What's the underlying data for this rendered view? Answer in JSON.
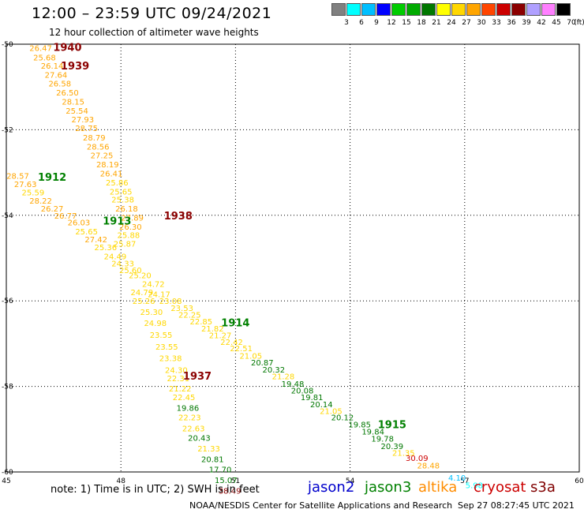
{
  "title": "12:00 – 23:59 UTC 09/24/2021",
  "subtitle": "12 hour collection of altimeter wave heights",
  "legend": {
    "labels": [
      "3",
      "6",
      "9",
      "12",
      "15",
      "18",
      "21",
      "24",
      "27",
      "30",
      "33",
      "36",
      "39",
      "42",
      "45",
      "70",
      "(ft)"
    ],
    "colors": [
      "#808080",
      "#00ffff",
      "#00bfff",
      "#0000ff",
      "#00cc00",
      "#00aa00",
      "#007700",
      "#ffff00",
      "#ffd700",
      "#ffa500",
      "#ff4500",
      "#cc0000",
      "#8b0000",
      "#b0a0ff",
      "#ff80ff",
      "#000000"
    ]
  },
  "axes": {
    "lon_range": [
      45,
      60
    ],
    "lat_range": [
      -60,
      -50
    ],
    "x_ticks": [
      "45",
      "48",
      "51",
      "54",
      "57",
      "60"
    ],
    "y_ticks": [
      "-50",
      "-52",
      "-54",
      "-56",
      "-58",
      "-60"
    ]
  },
  "colors": {
    "jason2": "#0000cc",
    "jason3": "#008000",
    "altika": "#ff8c00",
    "cryosat": "#cc0000",
    "s3a": "#800000",
    "grid": "#000000"
  },
  "map_data": {
    "heights": [
      {
        "v": "26.47",
        "x": 45.9,
        "y": -50.08,
        "c": "#ffa500"
      },
      {
        "v": "25.68",
        "x": 46.0,
        "y": -50.3,
        "c": "#ffa500"
      },
      {
        "v": "26.14",
        "x": 46.2,
        "y": -50.5,
        "c": "#ffa500"
      },
      {
        "v": "27.64",
        "x": 46.3,
        "y": -50.71,
        "c": "#ffa500"
      },
      {
        "v": "26.58",
        "x": 46.4,
        "y": -50.91,
        "c": "#ffa500"
      },
      {
        "v": "26.50",
        "x": 46.6,
        "y": -51.13,
        "c": "#ffa500"
      },
      {
        "v": "28.15",
        "x": 46.75,
        "y": -51.34,
        "c": "#ffa500"
      },
      {
        "v": "25.54",
        "x": 46.85,
        "y": -51.55,
        "c": "#ffa500"
      },
      {
        "v": "27.93",
        "x": 47.0,
        "y": -51.75,
        "c": "#ffa500"
      },
      {
        "v": "28.75",
        "x": 47.1,
        "y": -51.96,
        "c": "#ffa500"
      },
      {
        "v": "28.79",
        "x": 47.3,
        "y": -52.18,
        "c": "#ffa500"
      },
      {
        "v": "28.56",
        "x": 47.4,
        "y": -52.39,
        "c": "#ffa500"
      },
      {
        "v": "27.25",
        "x": 47.5,
        "y": -52.59,
        "c": "#ffa500"
      },
      {
        "v": "28.19",
        "x": 47.65,
        "y": -52.8,
        "c": "#ffa500"
      },
      {
        "v": "26.41",
        "x": 47.75,
        "y": -53.02,
        "c": "#ffa500"
      },
      {
        "v": "25.86",
        "x": 47.9,
        "y": -53.23,
        "c": "#ffd700"
      },
      {
        "v": "25.65",
        "x": 48.0,
        "y": -53.44,
        "c": "#ffd700"
      },
      {
        "v": "25.38",
        "x": 48.05,
        "y": -53.63,
        "c": "#ffd700"
      },
      {
        "v": "26.18",
        "x": 48.15,
        "y": -53.84,
        "c": "#ffa500"
      },
      {
        "v": "27.89",
        "x": 48.3,
        "y": -54.05,
        "c": "#ffa500"
      },
      {
        "v": "26.30",
        "x": 48.25,
        "y": -54.26,
        "c": "#ffa500"
      },
      {
        "v": "25.88",
        "x": 48.2,
        "y": -54.46,
        "c": "#ffd700"
      },
      {
        "v": "25.87",
        "x": 48.1,
        "y": -54.66,
        "c": "#ffd700"
      },
      {
        "v": "28.57",
        "x": 45.3,
        "y": -53.07,
        "c": "#ffa500"
      },
      {
        "v": "27.63",
        "x": 45.5,
        "y": -53.27,
        "c": "#ffa500"
      },
      {
        "v": "25.59",
        "x": 45.7,
        "y": -53.46,
        "c": "#ffd700"
      },
      {
        "v": "28.22",
        "x": 45.9,
        "y": -53.65,
        "c": "#ffa500"
      },
      {
        "v": "26.27",
        "x": 46.2,
        "y": -53.84,
        "c": "#ffa500"
      },
      {
        "v": "26.77",
        "x": 46.55,
        "y": -54.0,
        "c": "#ffa500"
      },
      {
        "v": "26.03",
        "x": 46.9,
        "y": -54.16,
        "c": "#ffa500"
      },
      {
        "v": "25.65",
        "x": 47.1,
        "y": -54.37,
        "c": "#ffd700"
      },
      {
        "v": "27.42",
        "x": 47.35,
        "y": -54.56,
        "c": "#ffa500"
      },
      {
        "v": "25.36",
        "x": 47.6,
        "y": -54.74,
        "c": "#ffd700"
      },
      {
        "v": "24.49",
        "x": 47.85,
        "y": -54.95,
        "c": "#ffd700"
      },
      {
        "v": "24.33",
        "x": 48.05,
        "y": -55.12,
        "c": "#ffd700"
      },
      {
        "v": "25.60",
        "x": 48.25,
        "y": -55.28,
        "c": "#ffd700"
      },
      {
        "v": "25.20",
        "x": 48.5,
        "y": -55.4,
        "c": "#ffd700"
      },
      {
        "v": "24.72",
        "x": 48.85,
        "y": -55.6,
        "c": "#ffd700"
      },
      {
        "v": "24.79",
        "x": 48.55,
        "y": -55.79,
        "c": "#ffd700"
      },
      {
        "v": "24.17",
        "x": 49.0,
        "y": -55.84,
        "c": "#ffd700"
      },
      {
        "v": "25.26",
        "x": 48.6,
        "y": -56.0,
        "c": "#ffd700"
      },
      {
        "v": "23.08",
        "x": 49.3,
        "y": -56.0,
        "c": "#ffd700"
      },
      {
        "v": "23.53",
        "x": 49.6,
        "y": -56.16,
        "c": "#ffd700"
      },
      {
        "v": "25.30",
        "x": 48.8,
        "y": -56.25,
        "c": "#ffd700"
      },
      {
        "v": "22.25",
        "x": 49.8,
        "y": -56.32,
        "c": "#ffd700"
      },
      {
        "v": "22.85",
        "x": 50.1,
        "y": -56.48,
        "c": "#ffd700"
      },
      {
        "v": "21.82",
        "x": 50.4,
        "y": -56.64,
        "c": "#ffd700"
      },
      {
        "v": "24.98",
        "x": 48.9,
        "y": -56.51,
        "c": "#ffd700"
      },
      {
        "v": "21.27",
        "x": 50.6,
        "y": -56.8,
        "c": "#ffd700"
      },
      {
        "v": "22.42",
        "x": 50.9,
        "y": -56.96,
        "c": "#ffd700"
      },
      {
        "v": "23.55",
        "x": 49.05,
        "y": -56.79,
        "c": "#ffd700"
      },
      {
        "v": "22.51",
        "x": 51.15,
        "y": -57.1,
        "c": "#ffd700"
      },
      {
        "v": "23.55",
        "x": 49.2,
        "y": -57.07,
        "c": "#ffd700"
      },
      {
        "v": "21.05",
        "x": 51.4,
        "y": -57.28,
        "c": "#ffd700"
      },
      {
        "v": "23.38",
        "x": 49.3,
        "y": -57.33,
        "c": "#ffd700"
      },
      {
        "v": "20.87",
        "x": 51.7,
        "y": -57.44,
        "c": "#007700"
      },
      {
        "v": "24.30",
        "x": 49.45,
        "y": -57.61,
        "c": "#ffd700"
      },
      {
        "v": "20.32",
        "x": 52.0,
        "y": -57.6,
        "c": "#007700"
      },
      {
        "v": "22.31",
        "x": 49.5,
        "y": -57.8,
        "c": "#ffd700"
      },
      {
        "v": "21.28",
        "x": 52.25,
        "y": -57.76,
        "c": "#ffd700"
      },
      {
        "v": "21.22",
        "x": 49.55,
        "y": -58.04,
        "c": "#ffd700"
      },
      {
        "v": "19.48",
        "x": 52.5,
        "y": -57.93,
        "c": "#007700"
      },
      {
        "v": "20.08",
        "x": 52.75,
        "y": -58.09,
        "c": "#007700"
      },
      {
        "v": "22.45",
        "x": 49.65,
        "y": -58.25,
        "c": "#ffd700"
      },
      {
        "v": "19.81",
        "x": 53.0,
        "y": -58.25,
        "c": "#007700"
      },
      {
        "v": "20.14",
        "x": 53.25,
        "y": -58.41,
        "c": "#007700"
      },
      {
        "v": "19.86",
        "x": 49.75,
        "y": -58.5,
        "c": "#007700"
      },
      {
        "v": "21.05",
        "x": 53.5,
        "y": -58.57,
        "c": "#ffd700"
      },
      {
        "v": "20.12",
        "x": 53.8,
        "y": -58.72,
        "c": "#007700"
      },
      {
        "v": "22.23",
        "x": 49.8,
        "y": -58.72,
        "c": "#ffd700"
      },
      {
        "v": "19.85",
        "x": 54.25,
        "y": -58.88,
        "c": "#007700"
      },
      {
        "v": "19.84",
        "x": 54.6,
        "y": -59.05,
        "c": "#007700"
      },
      {
        "v": "22.63",
        "x": 49.9,
        "y": -58.98,
        "c": "#ffd700"
      },
      {
        "v": "19.78",
        "x": 54.85,
        "y": -59.22,
        "c": "#007700"
      },
      {
        "v": "20.43",
        "x": 50.05,
        "y": -59.2,
        "c": "#007700"
      },
      {
        "v": "20.39",
        "x": 55.1,
        "y": -59.39,
        "c": "#007700"
      },
      {
        "v": "21.35",
        "x": 55.4,
        "y": -59.55,
        "c": "#ffd700"
      },
      {
        "v": "21.33",
        "x": 50.3,
        "y": -59.45,
        "c": "#ffd700"
      },
      {
        "v": "30.09",
        "x": 55.75,
        "y": -59.67,
        "c": "#cc0000"
      },
      {
        "v": "28.48",
        "x": 56.05,
        "y": -59.84,
        "c": "#ffa500"
      },
      {
        "v": "20.81",
        "x": 50.4,
        "y": -59.7,
        "c": "#007700"
      },
      {
        "v": "17.70",
        "x": 50.6,
        "y": -59.94,
        "c": "#007700"
      },
      {
        "v": "4.10",
        "x": 56.8,
        "y": -60.13,
        "c": "#00bfff"
      },
      {
        "v": "15.07",
        "x": 50.75,
        "y": -60.18,
        "c": "#007700"
      },
      {
        "v": "5.98",
        "x": 57.25,
        "y": -60.3,
        "c": "#00ffff"
      },
      {
        "v": "38.49",
        "x": 50.85,
        "y": -60.43,
        "c": "#8b0000"
      }
    ],
    "passes": [
      {
        "v": "1940",
        "x": 46.6,
        "y": -50.06,
        "c": "#8b0000"
      },
      {
        "v": "1939",
        "x": 46.8,
        "y": -50.5,
        "c": "#8b0000"
      },
      {
        "v": "1912",
        "x": 46.2,
        "y": -53.1,
        "c": "#008000"
      },
      {
        "v": "1913",
        "x": 47.9,
        "y": -54.12,
        "c": "#008000"
      },
      {
        "v": "1938",
        "x": 49.5,
        "y": -54.0,
        "c": "#8b0000"
      },
      {
        "v": "1914",
        "x": 51.0,
        "y": -56.5,
        "c": "#008000"
      },
      {
        "v": "1937",
        "x": 50.0,
        "y": -57.75,
        "c": "#8b0000"
      },
      {
        "v": "1915",
        "x": 55.1,
        "y": -58.88,
        "c": "#008000"
      }
    ]
  },
  "note": "note:  1) Time is in UTC;  2) SWH is in feet",
  "satellites": [
    {
      "name": "jason2",
      "color": "#0000cc"
    },
    {
      "name": "jason3",
      "color": "#008000"
    },
    {
      "name": "altika",
      "color": "#ff8c00"
    },
    {
      "name": "cryosat",
      "color": "#cc0000"
    },
    {
      "name": "s3a",
      "color": "#800000"
    }
  ],
  "credit": "NOAA/NESDIS Center for Satellite Applications and Research",
  "timestamp": "Sep 27 08:27:45 UTC 2021"
}
